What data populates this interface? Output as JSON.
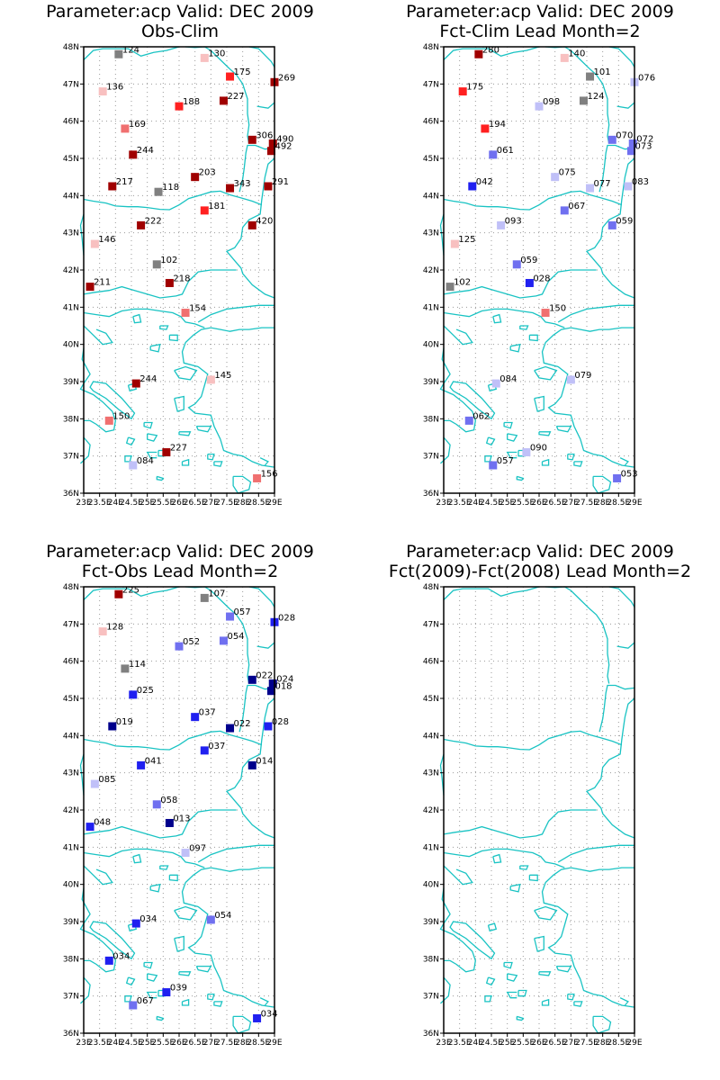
{
  "colors": {
    "coast": "#19c3c3",
    "frame": "#000000",
    "grid": "#9a9a9a",
    "dark_red": "#a00000",
    "red": "#ff2020",
    "light_red": "#f07070",
    "pink": "#f8c0c0",
    "gray": "#808080",
    "light_blue": "#c0c0f8",
    "mid_blue": "#7070f0",
    "blue": "#2020f0",
    "dark_blue": "#00008c"
  },
  "axes": {
    "lat_labels": [
      "36N",
      "37N",
      "38N",
      "39N",
      "40N",
      "41N",
      "42N",
      "43N",
      "44N",
      "45N",
      "46N",
      "47N",
      "48N"
    ],
    "lon_labels": [
      "23E",
      "23.5E",
      "24E",
      "24.5E",
      "25E",
      "25.5E",
      "26E",
      "26.5E",
      "27E",
      "27.5E",
      "28E",
      "28.5E",
      "29E"
    ],
    "lon_range": [
      23,
      29
    ],
    "lat_range": [
      36,
      48
    ],
    "lat_values": [
      36,
      37,
      38,
      39,
      40,
      41,
      42,
      43,
      44,
      45,
      46,
      47,
      48
    ],
    "lon_values": [
      23,
      23.5,
      24,
      24.5,
      25,
      25.5,
      26,
      26.5,
      27,
      27.5,
      28,
      28.5,
      29
    ]
  },
  "panels": [
    {
      "title1": "Parameter:acp Valid: DEC 2009",
      "title2": "Obs-Clim",
      "stations": [
        {
          "lon": 24.1,
          "lat": 47.8,
          "label": "124",
          "color": "gray"
        },
        {
          "lon": 26.8,
          "lat": 47.7,
          "label": "130",
          "color": "pink"
        },
        {
          "lon": 27.6,
          "lat": 47.2,
          "label": "175",
          "color": "red"
        },
        {
          "lon": 29.0,
          "lat": 47.05,
          "label": "269",
          "color": "dark_red"
        },
        {
          "lon": 23.6,
          "lat": 46.8,
          "label": "136",
          "color": "pink"
        },
        {
          "lon": 27.4,
          "lat": 46.55,
          "label": "227",
          "color": "dark_red"
        },
        {
          "lon": 26.0,
          "lat": 46.4,
          "label": "188",
          "color": "red"
        },
        {
          "lon": 24.3,
          "lat": 45.8,
          "label": "169",
          "color": "light_red"
        },
        {
          "lon": 28.3,
          "lat": 45.5,
          "label": "306",
          "color": "dark_red"
        },
        {
          "lon": 28.95,
          "lat": 45.4,
          "label": "490",
          "color": "dark_red"
        },
        {
          "lon": 28.9,
          "lat": 45.2,
          "label": "492",
          "color": "dark_red"
        },
        {
          "lon": 24.55,
          "lat": 45.1,
          "label": "244",
          "color": "dark_red"
        },
        {
          "lon": 26.5,
          "lat": 44.5,
          "label": "203",
          "color": "dark_red"
        },
        {
          "lon": 23.9,
          "lat": 44.25,
          "label": "217",
          "color": "dark_red"
        },
        {
          "lon": 27.6,
          "lat": 44.2,
          "label": "343",
          "color": "dark_red"
        },
        {
          "lon": 28.8,
          "lat": 44.25,
          "label": "291",
          "color": "dark_red"
        },
        {
          "lon": 25.35,
          "lat": 44.1,
          "label": "118",
          "color": "gray"
        },
        {
          "lon": 26.8,
          "lat": 43.6,
          "label": "181",
          "color": "red"
        },
        {
          "lon": 24.8,
          "lat": 43.2,
          "label": "222",
          "color": "dark_red"
        },
        {
          "lon": 28.3,
          "lat": 43.2,
          "label": "420",
          "color": "dark_red"
        },
        {
          "lon": 23.35,
          "lat": 42.7,
          "label": "146",
          "color": "pink"
        },
        {
          "lon": 25.3,
          "lat": 42.15,
          "label": "102",
          "color": "gray"
        },
        {
          "lon": 25.7,
          "lat": 41.65,
          "label": "218",
          "color": "dark_red"
        },
        {
          "lon": 23.2,
          "lat": 41.55,
          "label": "211",
          "color": "dark_red"
        },
        {
          "lon": 26.2,
          "lat": 40.85,
          "label": "154",
          "color": "light_red"
        },
        {
          "lon": 27.0,
          "lat": 39.05,
          "label": "145",
          "color": "pink"
        },
        {
          "lon": 24.65,
          "lat": 38.95,
          "label": "244",
          "color": "dark_red"
        },
        {
          "lon": 23.8,
          "lat": 37.95,
          "label": "150",
          "color": "light_red"
        },
        {
          "lon": 25.6,
          "lat": 37.1,
          "label": "227",
          "color": "dark_red"
        },
        {
          "lon": 24.55,
          "lat": 36.75,
          "label": "084",
          "color": "light_blue"
        },
        {
          "lon": 28.45,
          "lat": 36.4,
          "label": "156",
          "color": "light_red"
        }
      ]
    },
    {
      "title1": "Parameter:acp Valid: DEC 2009",
      "title2": "Fct-Clim Lead Month=2",
      "stations": [
        {
          "lon": 24.1,
          "lat": 47.8,
          "label": "280",
          "color": "dark_red"
        },
        {
          "lon": 26.8,
          "lat": 47.7,
          "label": "140",
          "color": "pink"
        },
        {
          "lon": 27.6,
          "lat": 47.2,
          "label": "101",
          "color": "gray"
        },
        {
          "lon": 29.0,
          "lat": 47.05,
          "label": "076",
          "color": "light_blue"
        },
        {
          "lon": 23.6,
          "lat": 46.8,
          "label": "175",
          "color": "red"
        },
        {
          "lon": 27.4,
          "lat": 46.55,
          "label": "124",
          "color": "gray"
        },
        {
          "lon": 26.0,
          "lat": 46.4,
          "label": "098",
          "color": "light_blue"
        },
        {
          "lon": 24.3,
          "lat": 45.8,
          "label": "194",
          "color": "red"
        },
        {
          "lon": 28.3,
          "lat": 45.5,
          "label": "070",
          "color": "mid_blue"
        },
        {
          "lon": 28.95,
          "lat": 45.4,
          "label": "072",
          "color": "mid_blue"
        },
        {
          "lon": 28.9,
          "lat": 45.2,
          "label": "073",
          "color": "mid_blue"
        },
        {
          "lon": 24.55,
          "lat": 45.1,
          "label": "061",
          "color": "mid_blue"
        },
        {
          "lon": 26.5,
          "lat": 44.5,
          "label": "075",
          "color": "light_blue"
        },
        {
          "lon": 23.9,
          "lat": 44.25,
          "label": "042",
          "color": "blue"
        },
        {
          "lon": 27.6,
          "lat": 44.2,
          "label": "077",
          "color": "light_blue"
        },
        {
          "lon": 28.8,
          "lat": 44.25,
          "label": "083",
          "color": "light_blue"
        },
        {
          "lon": 26.8,
          "lat": 43.6,
          "label": "067",
          "color": "mid_blue"
        },
        {
          "lon": 24.8,
          "lat": 43.2,
          "label": "093",
          "color": "light_blue"
        },
        {
          "lon": 28.3,
          "lat": 43.2,
          "label": "059",
          "color": "mid_blue"
        },
        {
          "lon": 23.35,
          "lat": 42.7,
          "label": "125",
          "color": "pink"
        },
        {
          "lon": 25.3,
          "lat": 42.15,
          "label": "059",
          "color": "mid_blue"
        },
        {
          "lon": 25.7,
          "lat": 41.65,
          "label": "028",
          "color": "blue"
        },
        {
          "lon": 23.2,
          "lat": 41.55,
          "label": "102",
          "color": "gray"
        },
        {
          "lon": 26.2,
          "lat": 40.85,
          "label": "150",
          "color": "light_red"
        },
        {
          "lon": 27.0,
          "lat": 39.05,
          "label": "079",
          "color": "light_blue"
        },
        {
          "lon": 24.65,
          "lat": 38.95,
          "label": "084",
          "color": "light_blue"
        },
        {
          "lon": 23.8,
          "lat": 37.95,
          "label": "062",
          "color": "mid_blue"
        },
        {
          "lon": 25.6,
          "lat": 37.1,
          "label": "090",
          "color": "light_blue"
        },
        {
          "lon": 24.55,
          "lat": 36.75,
          "label": "057",
          "color": "mid_blue"
        },
        {
          "lon": 28.45,
          "lat": 36.4,
          "label": "053",
          "color": "mid_blue"
        }
      ]
    },
    {
      "title1": "Parameter:acp Valid: DEC 2009",
      "title2": "Fct-Obs Lead Month=2",
      "stations": [
        {
          "lon": 24.1,
          "lat": 47.8,
          "label": "225",
          "color": "dark_red"
        },
        {
          "lon": 26.8,
          "lat": 47.7,
          "label": "107",
          "color": "gray"
        },
        {
          "lon": 27.6,
          "lat": 47.2,
          "label": "057",
          "color": "mid_blue"
        },
        {
          "lon": 29.0,
          "lat": 47.05,
          "label": "028",
          "color": "blue"
        },
        {
          "lon": 23.6,
          "lat": 46.8,
          "label": "128",
          "color": "pink"
        },
        {
          "lon": 27.4,
          "lat": 46.55,
          "label": "054",
          "color": "mid_blue"
        },
        {
          "lon": 26.0,
          "lat": 46.4,
          "label": "052",
          "color": "mid_blue"
        },
        {
          "lon": 24.3,
          "lat": 45.8,
          "label": "114",
          "color": "gray"
        },
        {
          "lon": 28.3,
          "lat": 45.5,
          "label": "022",
          "color": "dark_blue"
        },
        {
          "lon": 28.95,
          "lat": 45.4,
          "label": "024",
          "color": "dark_blue"
        },
        {
          "lon": 28.9,
          "lat": 45.2,
          "label": "018",
          "color": "dark_blue"
        },
        {
          "lon": 24.55,
          "lat": 45.1,
          "label": "025",
          "color": "blue"
        },
        {
          "lon": 26.5,
          "lat": 44.5,
          "label": "037",
          "color": "blue"
        },
        {
          "lon": 23.9,
          "lat": 44.25,
          "label": "019",
          "color": "dark_blue"
        },
        {
          "lon": 27.6,
          "lat": 44.2,
          "label": "022",
          "color": "dark_blue"
        },
        {
          "lon": 28.8,
          "lat": 44.25,
          "label": "028",
          "color": "blue"
        },
        {
          "lon": 26.8,
          "lat": 43.6,
          "label": "037",
          "color": "blue"
        },
        {
          "lon": 24.8,
          "lat": 43.2,
          "label": "041",
          "color": "blue"
        },
        {
          "lon": 28.3,
          "lat": 43.2,
          "label": "014",
          "color": "dark_blue"
        },
        {
          "lon": 23.35,
          "lat": 42.7,
          "label": "085",
          "color": "light_blue"
        },
        {
          "lon": 25.3,
          "lat": 42.15,
          "label": "058",
          "color": "mid_blue"
        },
        {
          "lon": 25.7,
          "lat": 41.65,
          "label": "013",
          "color": "dark_blue"
        },
        {
          "lon": 23.2,
          "lat": 41.55,
          "label": "048",
          "color": "blue"
        },
        {
          "lon": 26.2,
          "lat": 40.85,
          "label": "097",
          "color": "light_blue"
        },
        {
          "lon": 27.0,
          "lat": 39.05,
          "label": "054",
          "color": "mid_blue"
        },
        {
          "lon": 24.65,
          "lat": 38.95,
          "label": "034",
          "color": "blue"
        },
        {
          "lon": 23.8,
          "lat": 37.95,
          "label": "034",
          "color": "blue"
        },
        {
          "lon": 25.6,
          "lat": 37.1,
          "label": "039",
          "color": "blue"
        },
        {
          "lon": 24.55,
          "lat": 36.75,
          "label": "067",
          "color": "mid_blue"
        },
        {
          "lon": 28.45,
          "lat": 36.4,
          "label": "034",
          "color": "blue"
        }
      ]
    },
    {
      "title1": "Parameter:acp Valid: DEC 2009",
      "title2": "Fct(2009)-Fct(2008) Lead Month=2",
      "stations": []
    }
  ]
}
